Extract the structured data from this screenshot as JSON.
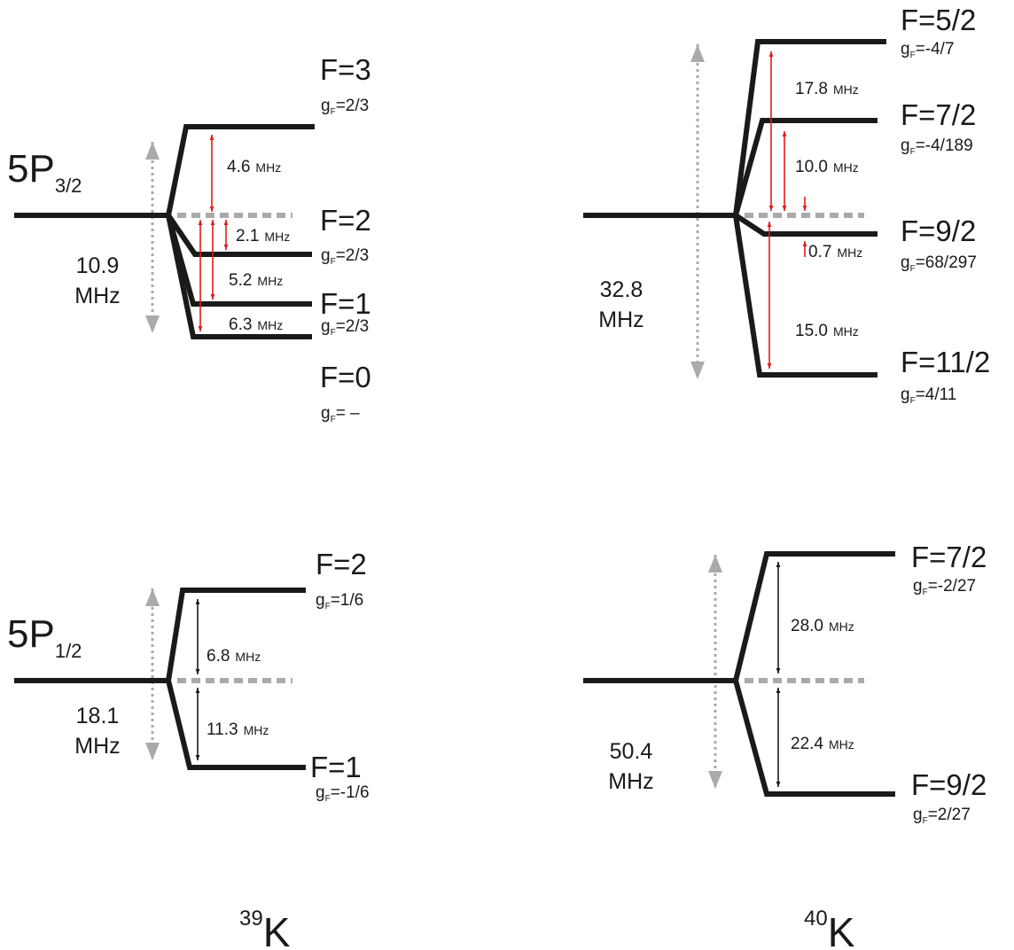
{
  "colors": {
    "level": "#1a1a1a",
    "reference": "#aaaaaa",
    "red_arrow": "#e21b1b",
    "black_arrow": "#1a1a1a"
  },
  "states": {
    "p32": {
      "main": "5P",
      "sub": "3/2"
    },
    "p12": {
      "main": "5P",
      "sub": "1/2"
    }
  },
  "isotopes": {
    "k39": {
      "mass": "39",
      "symbol": "K"
    },
    "k40": {
      "mass": "40",
      "symbol": "K"
    }
  },
  "panels": {
    "k39_p32": {
      "total": {
        "value": "10.9",
        "unit": "MHz"
      },
      "levels": [
        {
          "F": "F=3",
          "g": "=2/3"
        },
        {
          "F": "F=2",
          "g": "=2/3"
        },
        {
          "F": "F=1",
          "g": "=2/3"
        },
        {
          "F": "F=0",
          "g": "= –"
        }
      ],
      "splittings": [
        {
          "value": "4.6",
          "unit": "MHz"
        },
        {
          "value": "2.1",
          "unit": "MHz"
        },
        {
          "value": "5.2",
          "unit": "MHz"
        },
        {
          "value": "6.3",
          "unit": "MHz"
        }
      ]
    },
    "k40_p32": {
      "total": {
        "value": "32.8",
        "unit": "MHz"
      },
      "levels": [
        {
          "F": "F=5/2",
          "g": "=-4/7"
        },
        {
          "F": "F=7/2",
          "g": "=-4/189"
        },
        {
          "F": "F=9/2",
          "g": "=68/297"
        },
        {
          "F": "F=11/2",
          "g": "=4/11"
        }
      ],
      "splittings": [
        {
          "value": "17.8",
          "unit": "MHz"
        },
        {
          "value": "10.0",
          "unit": "MHz"
        },
        {
          "value": "0.7",
          "unit": "MHz"
        },
        {
          "value": "15.0",
          "unit": "MHz"
        }
      ]
    },
    "k39_p12": {
      "total": {
        "value": "18.1",
        "unit": "MHz"
      },
      "levels": [
        {
          "F": "F=2",
          "g": "=1/6"
        },
        {
          "F": "F=1",
          "g": "=-1/6"
        }
      ],
      "splittings": [
        {
          "value": "6.8",
          "unit": "MHz"
        },
        {
          "value": "11.3",
          "unit": "MHz"
        }
      ]
    },
    "k40_p12": {
      "total": {
        "value": "50.4",
        "unit": "MHz"
      },
      "levels": [
        {
          "F": "F=7/2",
          "g": "=-2/27"
        },
        {
          "F": "F=9/2",
          "g": "=2/27"
        }
      ],
      "splittings": [
        {
          "value": "28.0",
          "unit": "MHz"
        },
        {
          "value": "22.4",
          "unit": "MHz"
        }
      ]
    }
  }
}
